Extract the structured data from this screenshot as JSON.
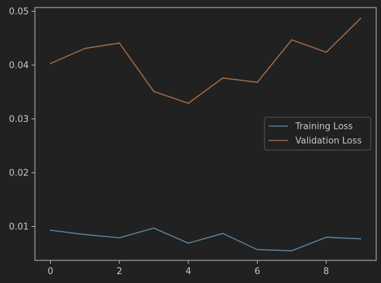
{
  "chart_data": {
    "type": "line",
    "title": "",
    "xlabel": "",
    "ylabel": "",
    "x": [
      0,
      1,
      2,
      3,
      4,
      5,
      6,
      7,
      8,
      9
    ],
    "xticks": [
      0,
      2,
      4,
      6,
      8
    ],
    "yticks": [
      0.01,
      0.02,
      0.03,
      0.04,
      0.05
    ],
    "xlim": [
      -0.45,
      9.45
    ],
    "ylim": [
      0.0037,
      0.0507
    ],
    "grid": false,
    "legend_position": "center-right",
    "background": "#212121",
    "axis_color": "#c8c8c8",
    "series": [
      {
        "name": "Training Loss",
        "color": "#5f849e",
        "values": [
          0.0093,
          0.0085,
          0.0079,
          0.0097,
          0.0069,
          0.0087,
          0.0057,
          0.0055,
          0.008,
          0.0077
        ]
      },
      {
        "name": "Validation Loss",
        "color": "#a86e46",
        "values": [
          0.0403,
          0.0431,
          0.0441,
          0.0351,
          0.0329,
          0.0376,
          0.0368,
          0.0447,
          0.0424,
          0.0487
        ]
      }
    ]
  }
}
